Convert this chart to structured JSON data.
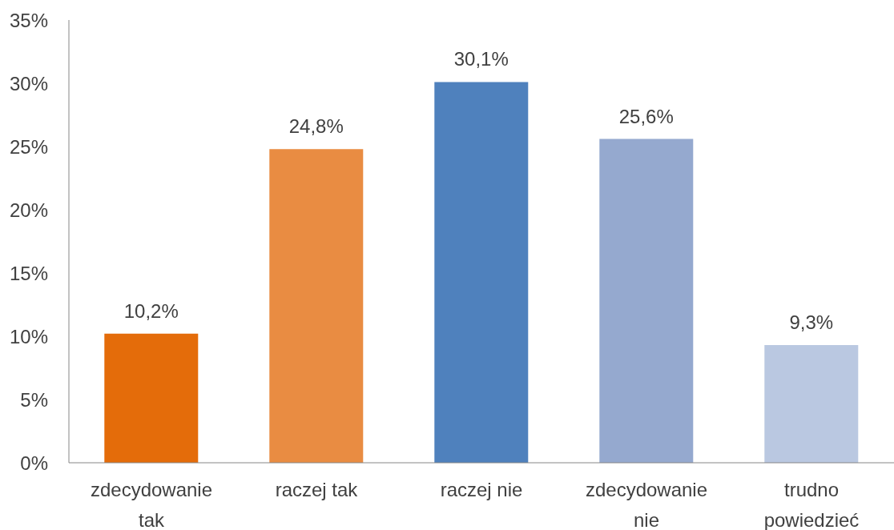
{
  "chart_data": {
    "type": "bar",
    "categories": [
      "zdecydowanie tak",
      "raczej tak",
      "raczej nie",
      "zdecydowanie nie",
      "trudno powiedzieć"
    ],
    "values": [
      10.2,
      24.8,
      30.1,
      25.6,
      9.3
    ],
    "colors": [
      "#e46c0a",
      "#e98c42",
      "#4f81bd",
      "#95a9cf",
      "#bac8e1"
    ],
    "value_labels": [
      "10,2%",
      "24,8%",
      "30,1%",
      "25,6%",
      "9,3%"
    ],
    "ylim": [
      0,
      35
    ],
    "yticks": [
      {
        "value": 0,
        "label": "0%"
      },
      {
        "value": 5,
        "label": "5%"
      },
      {
        "value": 10,
        "label": "10%"
      },
      {
        "value": 15,
        "label": "15%"
      },
      {
        "value": 20,
        "label": "20%"
      },
      {
        "value": 25,
        "label": "25%"
      },
      {
        "value": 30,
        "label": "30%"
      },
      {
        "value": 35,
        "label": "35%"
      }
    ]
  }
}
